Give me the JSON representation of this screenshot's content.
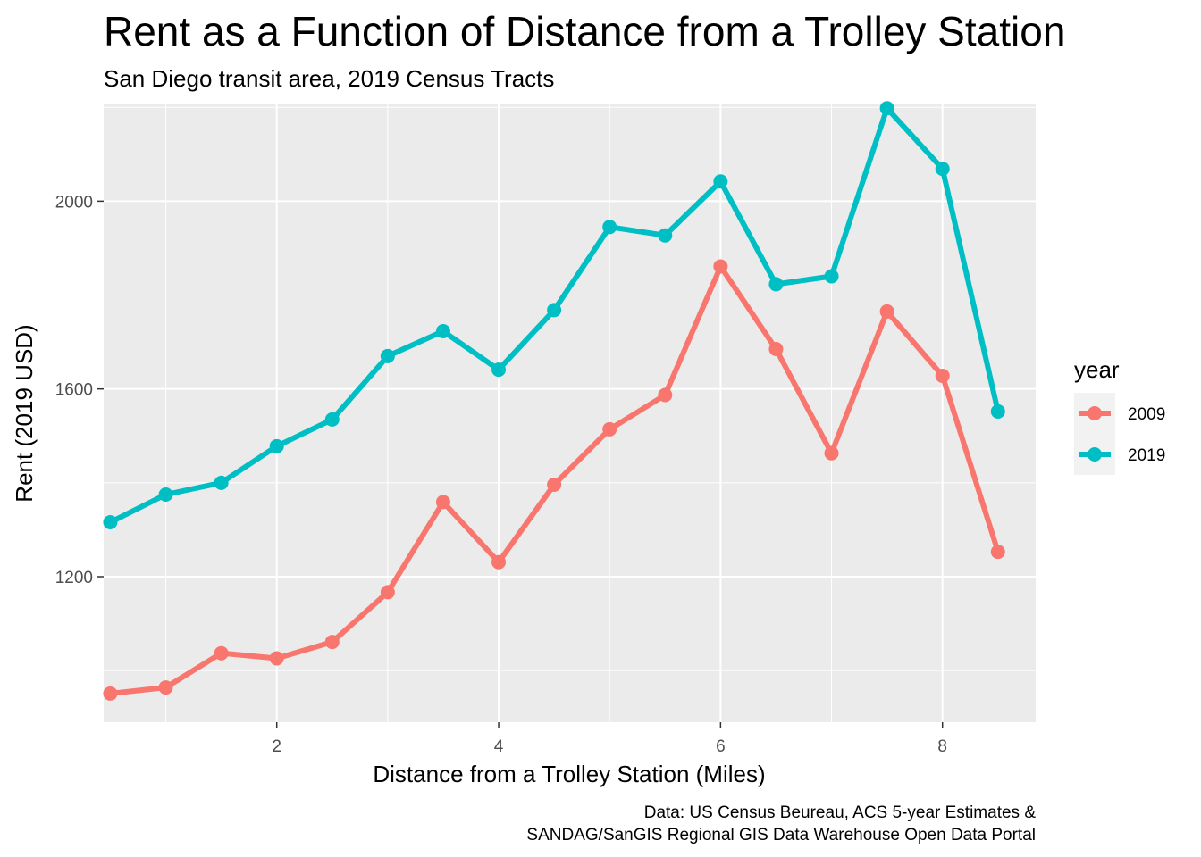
{
  "chart_data": {
    "type": "line",
    "title": "Rent as a Function of Distance from a Trolley Station",
    "subtitle": "San Diego transit area, 2019 Census Tracts",
    "xlabel": "Distance from a Trolley Station (Miles)",
    "ylabel": "Rent (2019 USD)",
    "xlim": [
      0.44,
      8.84
    ],
    "ylim": [
      890,
      2208
    ],
    "x_ticks": [
      2,
      4,
      6,
      8
    ],
    "x_tick_labels": [
      "2",
      "4",
      "6",
      "8"
    ],
    "y_ticks": [
      1200,
      1600,
      2000
    ],
    "y_tick_labels": [
      "1200",
      "1600",
      "2000"
    ],
    "grid": true,
    "legend": {
      "title": "year",
      "position": "right"
    },
    "caption": [
      "Data: US Census Beureau, ACS 5-year Estimates &",
      "SANDAG/SanGIS Regional GIS Data Warehouse Open Data Portal"
    ],
    "x": [
      0.5,
      1,
      1.5,
      2,
      2.5,
      3,
      3.5,
      4,
      4.5,
      5,
      5.5,
      6,
      6.5,
      7,
      7.5,
      8,
      8.5
    ],
    "series": [
      {
        "name": "2009",
        "color": "#F8766D",
        "values": [
          951,
          964,
          1037,
          1026,
          1061,
          1167,
          1359,
          1231,
          1396,
          1514,
          1587,
          1861,
          1685,
          1463,
          1765,
          1628,
          1253
        ]
      },
      {
        "name": "2019",
        "color": "#00BFC4",
        "values": [
          1316,
          1375,
          1400,
          1478,
          1535,
          1670,
          1723,
          1641,
          1768,
          1945,
          1927,
          2042,
          1823,
          1840,
          2198,
          2069,
          1552
        ]
      }
    ]
  }
}
